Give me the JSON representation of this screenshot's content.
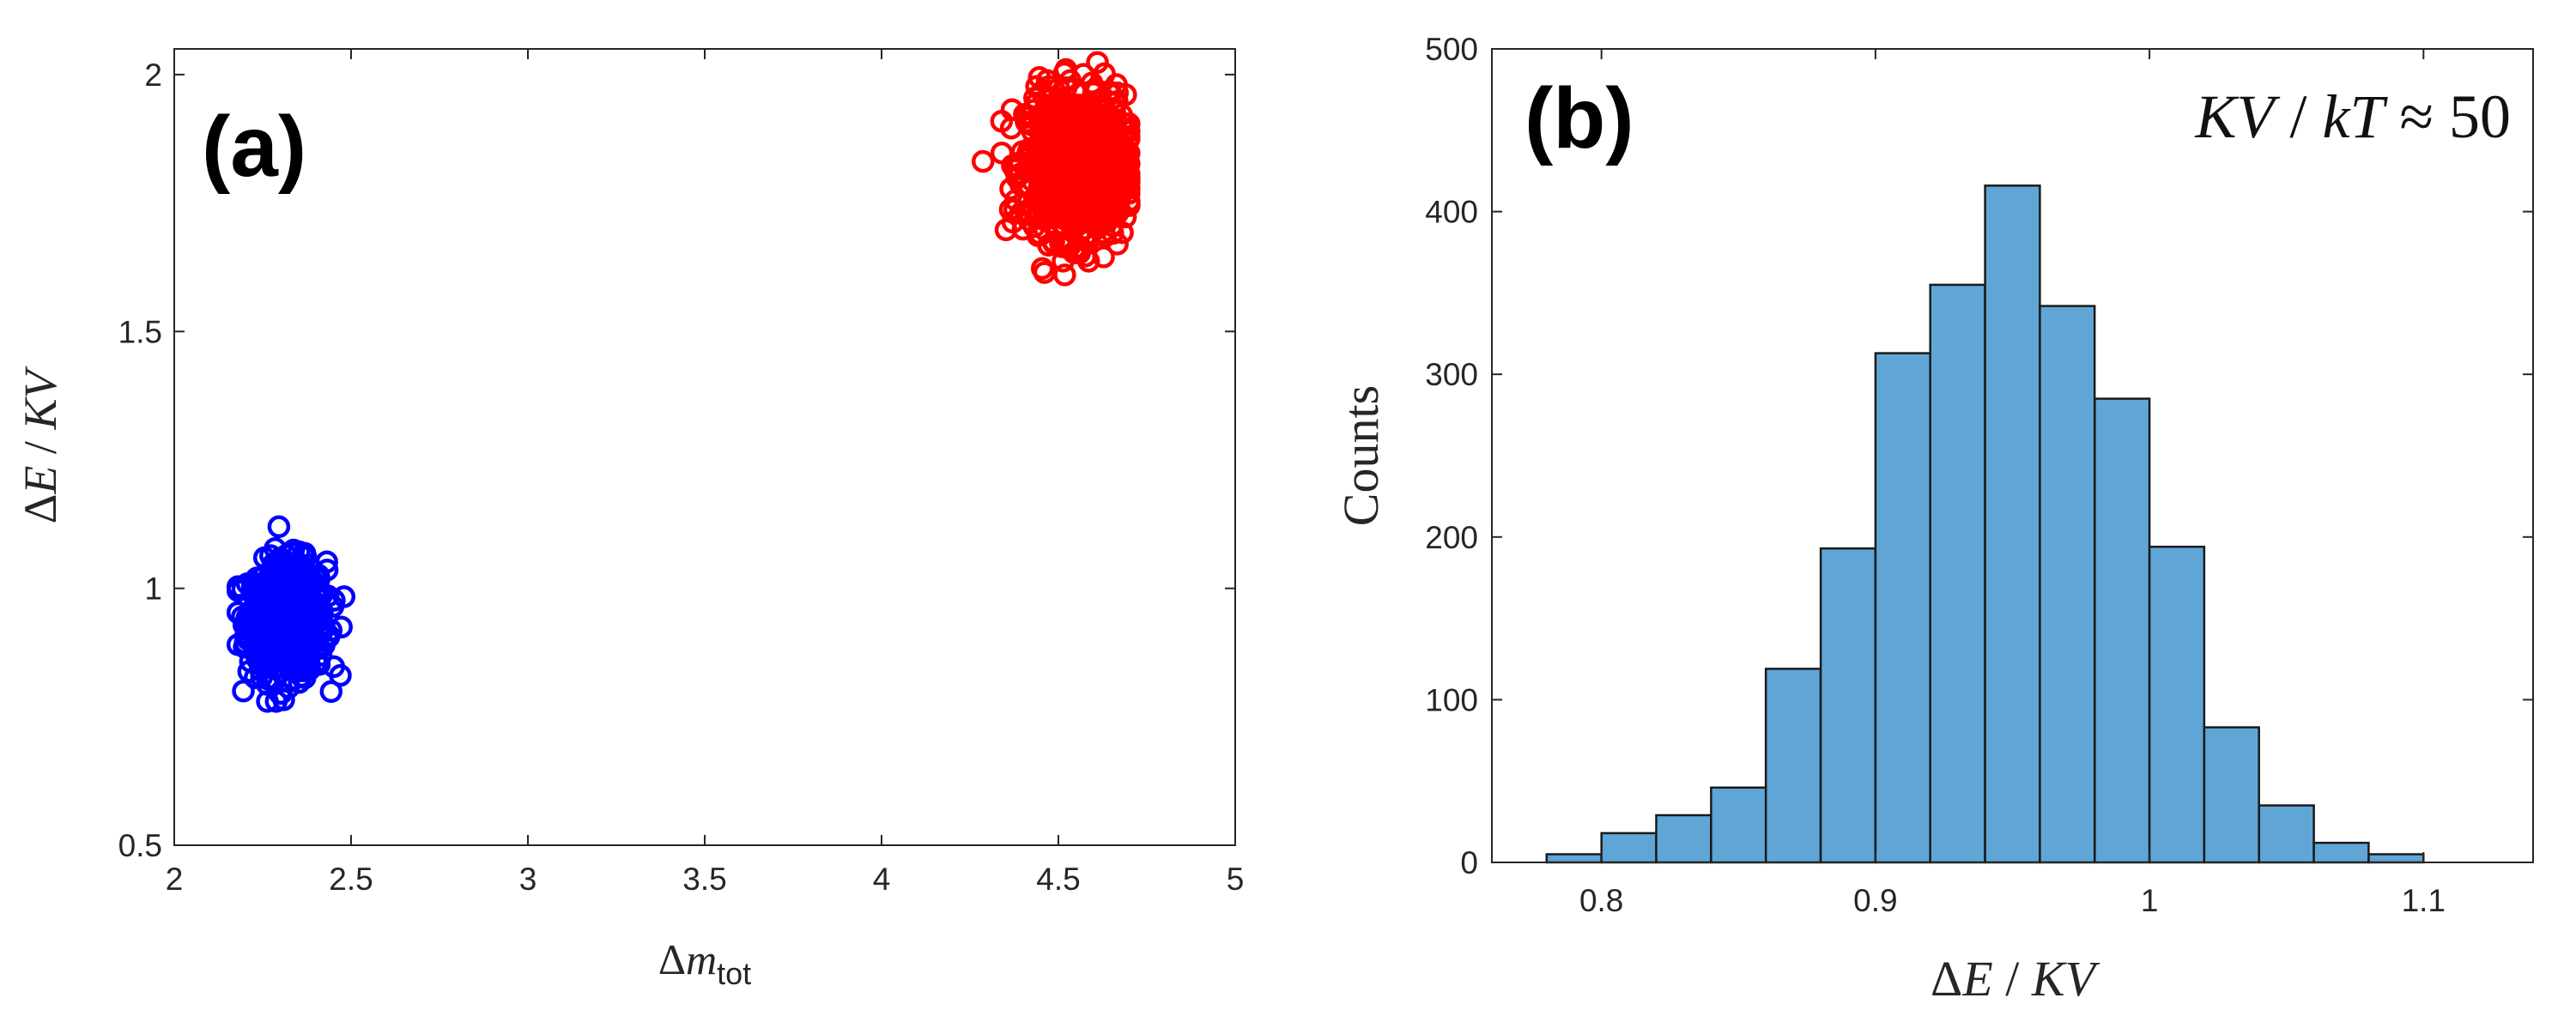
{
  "chart_data": [
    {
      "panel_label": "(a)",
      "type": "scatter",
      "xlabel": {
        "prefix": "Δ",
        "main": "m",
        "sub": "tot"
      },
      "ylabel": {
        "prefix": "Δ",
        "italic1": "E",
        "sep": " / ",
        "italic2": "KV"
      },
      "xlim": [
        2,
        5
      ],
      "ylim": [
        0.5,
        2.05
      ],
      "xticks": [
        2,
        2.5,
        3,
        3.5,
        4,
        4.5,
        5
      ],
      "yticks": [
        0.5,
        1,
        1.5,
        2
      ],
      "xtick_labels": [
        "2",
        "2.5",
        "3",
        "3.5",
        "4",
        "4.5",
        "5"
      ],
      "ytick_labels": [
        "0.5",
        "1",
        "1.5",
        "2"
      ],
      "marker": "open-circle",
      "grid": false,
      "series": [
        {
          "color": "#0000ff",
          "n": 700,
          "x_mean": 2.32,
          "x_sd": 0.055,
          "x_range": [
            2.18,
            2.48
          ],
          "y_mean": 0.94,
          "y_sd": 0.055,
          "y_range": [
            0.78,
            1.12
          ]
        },
        {
          "color": "#ff0000",
          "n": 900,
          "x_mean": 4.55,
          "x_sd": 0.07,
          "x_range": [
            4.2,
            4.7
          ],
          "y_mean": 1.82,
          "y_sd": 0.07,
          "y_range": [
            1.61,
            2.06
          ]
        }
      ]
    },
    {
      "panel_label": "(b)",
      "type": "bar",
      "annotation": {
        "italic1": "KV",
        "sep": " / ",
        "italic2": "kT",
        "rest": " ≈ 50"
      },
      "xlabel": {
        "prefix": "Δ",
        "italic1": "E",
        "sep": " / ",
        "italic2": "KV"
      },
      "ylabel": "Counts",
      "xlim": [
        0.76,
        1.14
      ],
      "ylim": [
        0,
        500
      ],
      "xticks": [
        0.8,
        0.9,
        1.0,
        1.1
      ],
      "yticks": [
        0,
        100,
        200,
        300,
        400,
        500
      ],
      "xtick_labels": [
        "0.8",
        "0.9",
        "1",
        "1.1"
      ],
      "ytick_labels": [
        "0",
        "100",
        "200",
        "300",
        "400",
        "500"
      ],
      "bin_edges": [
        0.78,
        0.8,
        0.82,
        0.84,
        0.86,
        0.88,
        0.9,
        0.92,
        0.94,
        0.96,
        0.98,
        1.0,
        1.02,
        1.04,
        1.06,
        1.08,
        1.1
      ],
      "values": [
        5,
        18,
        29,
        46,
        119,
        193,
        313,
        355,
        416,
        342,
        285,
        194,
        83,
        35,
        12,
        5
      ],
      "bar_color": "#5fa6d6",
      "grid": false
    }
  ]
}
